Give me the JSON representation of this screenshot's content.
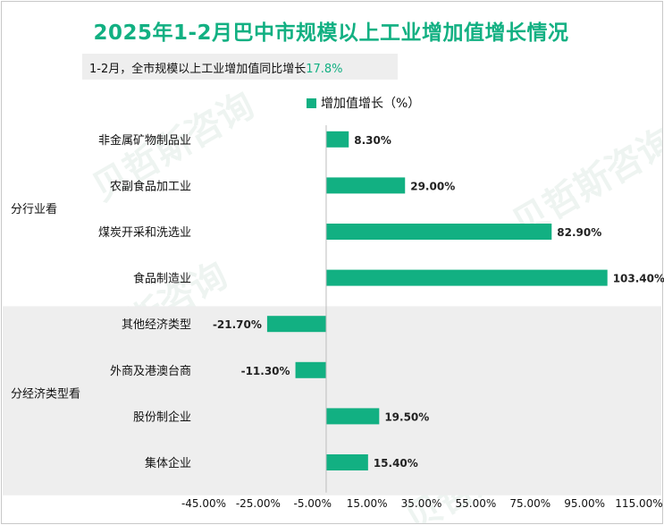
{
  "title": "2025年1-2月巴中市规模以上工业增加值增长情况",
  "subtitle": {
    "text": "1-2月，全市规模以上工业增加值同比增长",
    "value": "17.8%"
  },
  "watermark": "贝哲斯咨询",
  "chart_data": {
    "type": "bar",
    "orientation": "horizontal",
    "legend": "增加值增长（%）",
    "legend_position": "top",
    "xlim": [
      -45,
      115
    ],
    "x_ticks": [
      "-45.00%",
      "-25.00%",
      "-5.00%",
      "15.00%",
      "35.00%",
      "55.00%",
      "75.00%",
      "95.00%",
      "115.00%"
    ],
    "x_tick_values": [
      -45,
      -25,
      -5,
      15,
      35,
      55,
      75,
      95,
      115
    ],
    "groups": [
      {
        "name": "分行业看",
        "shaded": false,
        "categories": [
          "非金属矿物制品业",
          "农副食品加工业",
          "煤炭开采和洗选业",
          "食品制造业"
        ],
        "values": [
          8.3,
          29.0,
          82.9,
          103.4
        ],
        "labels": [
          "8.30%",
          "29.00%",
          "82.90%",
          "103.40%"
        ]
      },
      {
        "name": "分经济类型看",
        "shaded": true,
        "categories": [
          "其他经济类型",
          "外商及港澳台商",
          "股份制企业",
          "集体企业"
        ],
        "values": [
          -21.7,
          -11.3,
          19.5,
          15.4
        ],
        "labels": [
          "-21.70%",
          "-11.30%",
          "19.50%",
          "15.40%"
        ]
      }
    ],
    "bar_color": "#12b082",
    "shade_color": "#eeeeee"
  }
}
